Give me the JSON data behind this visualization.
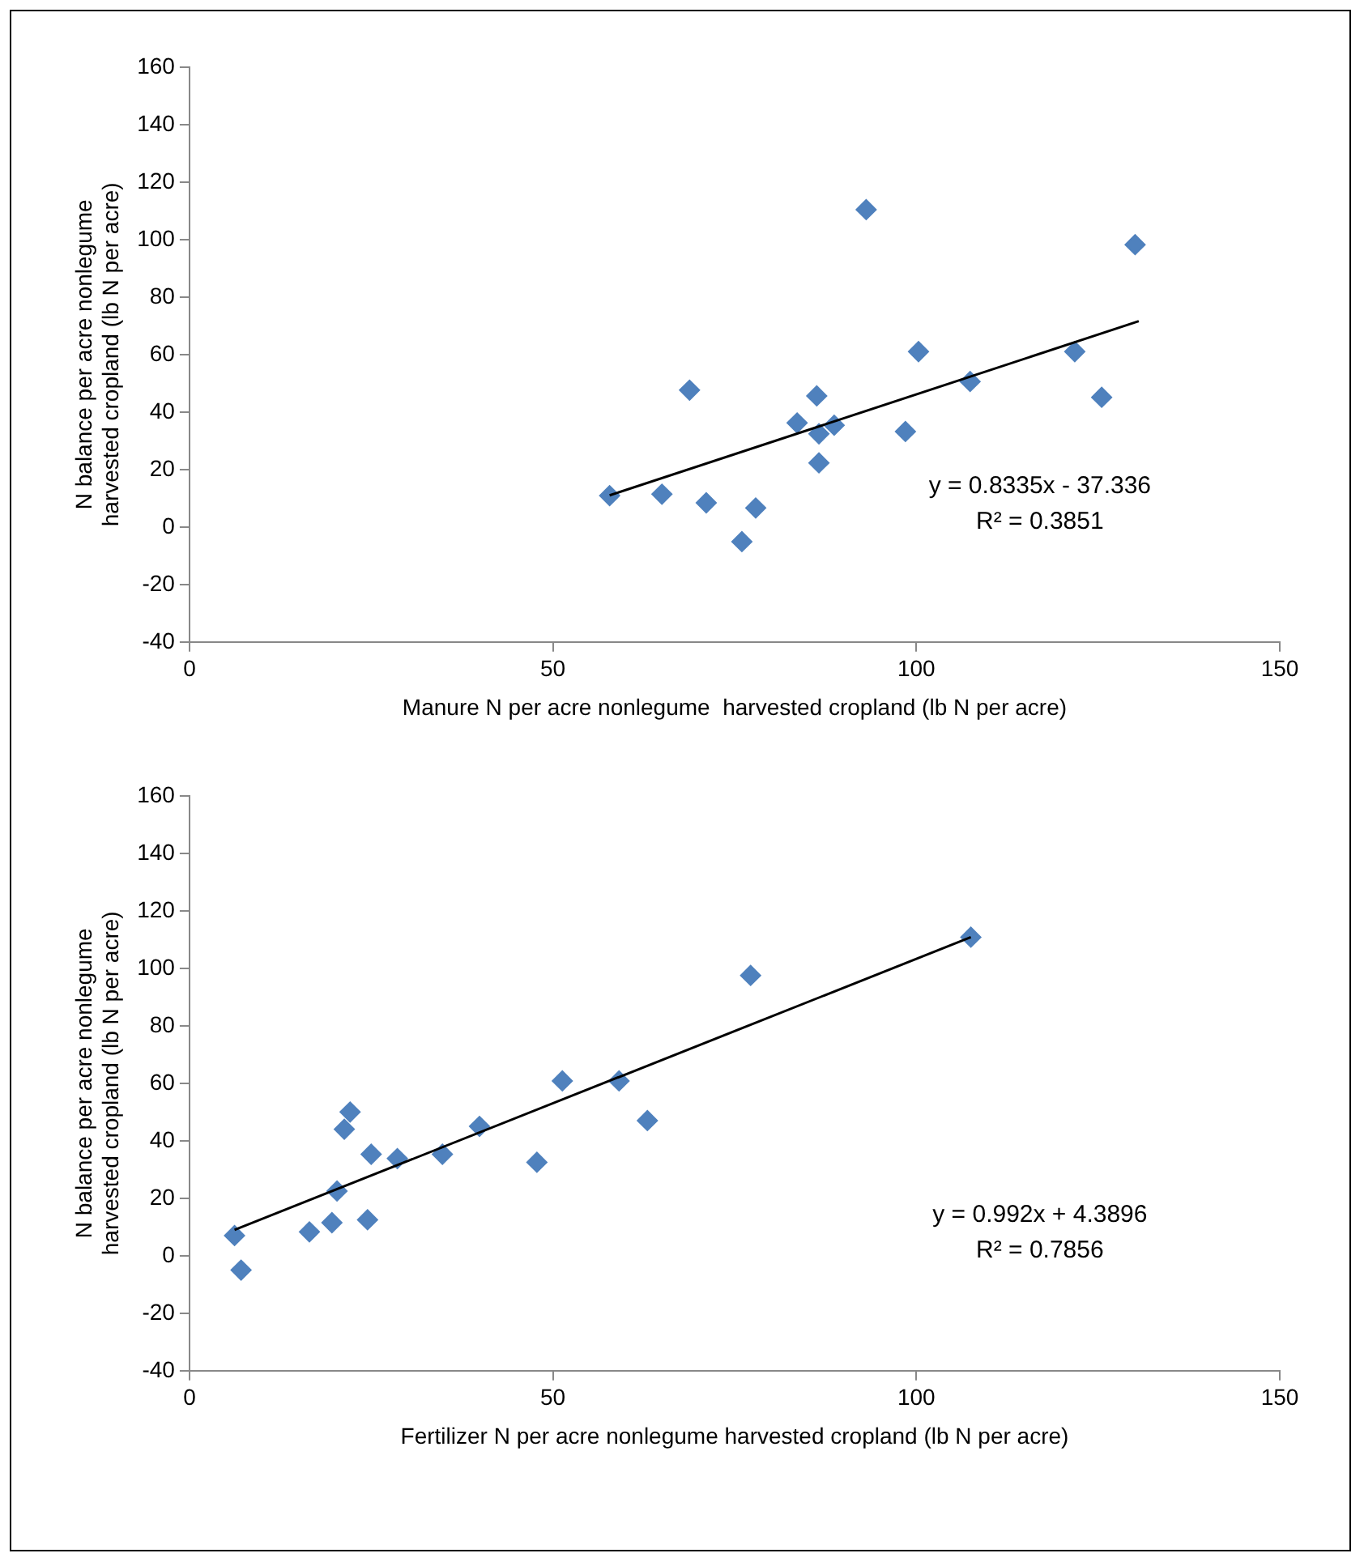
{
  "chart_data": [
    {
      "type": "scatter",
      "xlabel": "Manure N per acre nonlegume  harvested cropland (lb N per acre)",
      "ylabel": "N balance per acre nonlegume harvested cropland (lb N per acre)",
      "xlim": [
        0,
        150
      ],
      "xticks": [
        0,
        50,
        100,
        150
      ],
      "ylim": [
        -40,
        160
      ],
      "yticks": [
        -40,
        -20,
        0,
        20,
        40,
        60,
        80,
        100,
        120,
        140,
        160
      ],
      "grid": false,
      "legend": false,
      "marker": "diamond",
      "annotations": [
        "y = 0.8335x - 37.336",
        "R² = 0.3851"
      ],
      "series": [
        {
          "color": "#4f81bd",
          "x": [
            57.8,
            65.0,
            71.1,
            68.8,
            77.9,
            76.0,
            83.6,
            86.3,
            86.6,
            88.7,
            86.6,
            93.1,
            98.5,
            100.3,
            107.4,
            121.8,
            125.5,
            130.1
          ],
          "values": [
            10.9,
            11.4,
            8.4,
            47.6,
            6.6,
            -5.1,
            36.2,
            45.6,
            32.4,
            35.4,
            22.3,
            110.4,
            33.2,
            61.0,
            50.6,
            61.0,
            45.1,
            98.2
          ]
        },
        {
          "type": "line",
          "marker": "none",
          "color": "#000000",
          "x": [
            57.8,
            130.6
          ],
          "values": [
            11,
            71.6
          ]
        }
      ]
    },
    {
      "type": "scatter",
      "xlabel": "Fertilizer N per acre nonlegume harvested cropland (lb N per acre)",
      "ylabel": "N balance per acre nonlegume harvested cropland (lb N per acre)",
      "xlim": [
        0,
        150
      ],
      "xticks": [
        0,
        50,
        100,
        150
      ],
      "ylim": [
        -40,
        160
      ],
      "yticks": [
        -40,
        -20,
        0,
        20,
        40,
        60,
        80,
        100,
        120,
        140,
        160
      ],
      "grid": false,
      "legend": false,
      "marker": "diamond",
      "annotations": [
        "y = 0.992x + 4.3896",
        "R² = 0.7856"
      ],
      "series": [
        {
          "color": "#4f81bd",
          "x": [
            6.2,
            7.1,
            16.5,
            19.6,
            20.3,
            21.3,
            22.1,
            24.5,
            25.0,
            28.6,
            34.8,
            39.9,
            47.8,
            51.3,
            59.1,
            63.0,
            77.2,
            107.5
          ],
          "values": [
            7.0,
            -5.0,
            8.3,
            11.5,
            22.5,
            44,
            50,
            12.5,
            35.3,
            33.8,
            35.3,
            45,
            32.5,
            60.8,
            60.8,
            47,
            97.5,
            110.8
          ]
        },
        {
          "type": "line",
          "marker": "none",
          "color": "#000000",
          "x": [
            6.2,
            107.5
          ],
          "values": [
            9,
            110.8
          ]
        }
      ]
    }
  ]
}
